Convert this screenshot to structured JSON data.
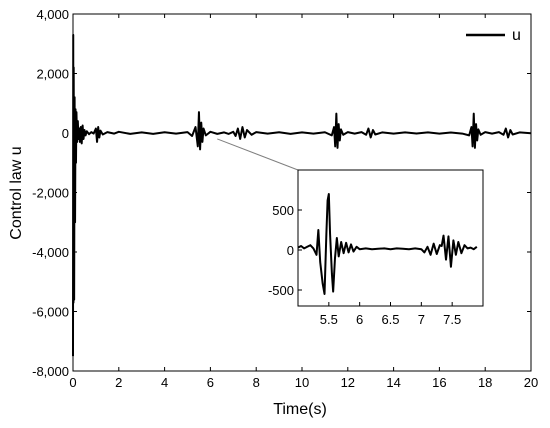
{
  "chart_data": [
    {
      "type": "line",
      "xlabel": "Time(s)",
      "ylabel": "Control law u",
      "xlim": [
        0,
        20
      ],
      "ylim": [
        -8000,
        4000
      ],
      "xticks": [
        0,
        2,
        4,
        6,
        8,
        10,
        12,
        14,
        16,
        18,
        20
      ],
      "yticks": [
        -8000,
        -6000,
        -4000,
        -2000,
        0,
        2000,
        4000
      ],
      "xtick_labels": [
        "0",
        "2",
        "4",
        "6",
        "8",
        "10",
        "12",
        "14",
        "16",
        "18",
        "20"
      ],
      "ytick_labels": [
        "-8,000",
        "-6,000",
        "-4,000",
        "-2,000",
        "0",
        "2,000",
        "4,000"
      ],
      "legend": {
        "position": "top-right",
        "entries": [
          "u"
        ]
      },
      "grid": false,
      "series": [
        {
          "name": "u",
          "color": "#000000",
          "x": [
            0,
            0.01,
            0.02,
            0.03,
            0.05,
            0.07,
            0.09,
            0.11,
            0.13,
            0.15,
            0.18,
            0.21,
            0.24,
            0.27,
            0.3,
            0.34,
            0.38,
            0.42,
            0.46,
            0.5,
            0.55,
            0.6,
            0.7,
            0.8,
            0.9,
            1.0,
            1.05,
            1.1,
            1.15,
            1.2,
            1.3,
            1.5,
            1.8,
            2.0,
            2.5,
            3.0,
            3.5,
            4.0,
            4.5,
            5.0,
            5.2,
            5.35,
            5.45,
            5.5,
            5.55,
            5.6,
            5.65,
            5.7,
            5.8,
            6.0,
            6.3,
            6.6,
            6.8,
            7.0,
            7.1,
            7.2,
            7.3,
            7.4,
            7.5,
            7.6,
            7.8,
            8.0,
            8.5,
            9.0,
            9.5,
            10.0,
            10.5,
            11.0,
            11.3,
            11.4,
            11.45,
            11.5,
            11.55,
            11.6,
            11.65,
            11.7,
            11.8,
            12.0,
            12.3,
            12.6,
            12.8,
            12.9,
            13.0,
            13.1,
            13.2,
            13.5,
            14.0,
            14.5,
            15.0,
            15.5,
            16.0,
            16.5,
            17.0,
            17.3,
            17.4,
            17.45,
            17.5,
            17.55,
            17.6,
            17.65,
            17.7,
            17.8,
            18.0,
            18.3,
            18.6,
            18.8,
            18.9,
            19.0,
            19.1,
            19.2,
            19.5,
            20.0
          ],
          "y": [
            -7500,
            3300,
            -5700,
            2200,
            -5600,
            1200,
            -3000,
            800,
            -1000,
            700,
            -300,
            400,
            -200,
            150,
            -300,
            200,
            -350,
            250,
            -200,
            100,
            -80,
            60,
            -40,
            30,
            -20,
            150,
            -300,
            200,
            -150,
            80,
            -50,
            30,
            -20,
            40,
            -30,
            20,
            -30,
            25,
            -20,
            30,
            -100,
            200,
            -450,
            700,
            -550,
            350,
            -300,
            150,
            -80,
            40,
            -30,
            20,
            -30,
            40,
            -100,
            150,
            -200,
            200,
            -150,
            100,
            -60,
            30,
            -20,
            25,
            -30,
            20,
            -20,
            25,
            -80,
            200,
            -450,
            650,
            -500,
            300,
            -250,
            120,
            -60,
            30,
            -20,
            30,
            -60,
            150,
            -150,
            100,
            -50,
            20,
            -20,
            20,
            -15,
            20,
            -20,
            15,
            -20,
            -80,
            200,
            -450,
            650,
            -500,
            300,
            -250,
            120,
            -60,
            30,
            -20,
            30,
            -60,
            150,
            -150,
            100,
            -50,
            20,
            -10
          ]
        }
      ]
    },
    {
      "type": "line",
      "xlim": [
        5,
        8
      ],
      "ylim": [
        -700,
        1000
      ],
      "xticks": [
        5.5,
        6,
        6.5,
        7,
        7.5
      ],
      "xtick_labels": [
        "5.5",
        "6",
        "6.5",
        "7",
        "7.5"
      ],
      "yticks": [
        -500,
        0,
        500
      ],
      "ytick_labels": [
        "-500",
        "0",
        "500"
      ],
      "series": [
        {
          "name": "u",
          "color": "#000000",
          "x": [
            5.0,
            5.05,
            5.1,
            5.15,
            5.2,
            5.25,
            5.3,
            5.33,
            5.36,
            5.4,
            5.43,
            5.46,
            5.48,
            5.5,
            5.52,
            5.55,
            5.57,
            5.6,
            5.63,
            5.66,
            5.7,
            5.74,
            5.78,
            5.82,
            5.86,
            5.9,
            5.95,
            6.0,
            6.1,
            6.2,
            6.3,
            6.4,
            6.5,
            6.6,
            6.7,
            6.8,
            6.9,
            7.0,
            7.05,
            7.1,
            7.15,
            7.2,
            7.25,
            7.3,
            7.33,
            7.36,
            7.4,
            7.44,
            7.48,
            7.52,
            7.56,
            7.6,
            7.65,
            7.7,
            7.75,
            7.8,
            7.85,
            7.9
          ],
          "y": [
            30,
            50,
            20,
            40,
            60,
            20,
            -60,
            250,
            -150,
            -420,
            -550,
            200,
            620,
            700,
            200,
            -300,
            -520,
            -100,
            150,
            -80,
            100,
            -40,
            90,
            -30,
            70,
            -20,
            40,
            10,
            20,
            10,
            15,
            20,
            10,
            20,
            15,
            10,
            20,
            10,
            -30,
            40,
            -60,
            80,
            -50,
            60,
            50,
            180,
            -120,
            170,
            -210,
            120,
            -60,
            100,
            -40,
            60,
            20,
            30,
            10,
            40
          ]
        }
      ]
    }
  ]
}
